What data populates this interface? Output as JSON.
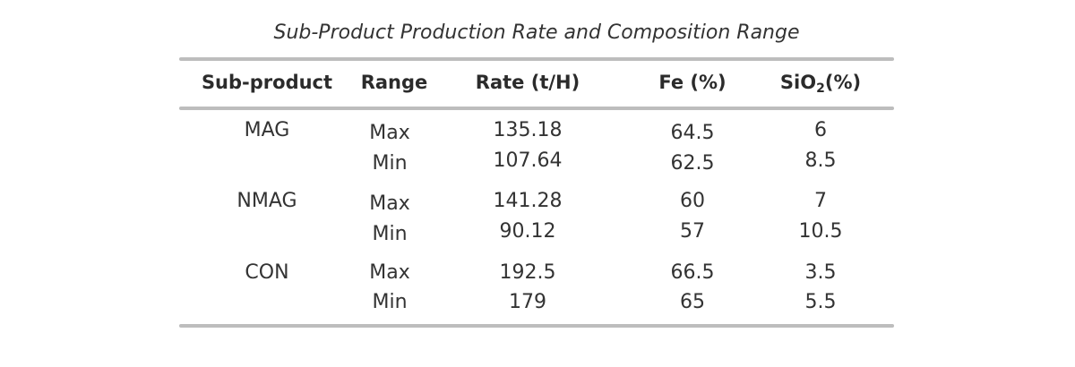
{
  "caption": "Sub-Product Production Rate and Composition Range",
  "headers": {
    "sub_product": "Sub-product",
    "range": "Range",
    "rate": "Rate (t/H)",
    "fe": "Fe (%)",
    "sio2_prefix": "SiO",
    "sio2_sub": "2",
    "sio2_suffix": "(%)"
  },
  "rows": [
    {
      "product": "MAG",
      "max": {
        "range": "Max",
        "rate": "135.18",
        "fe": "64.5",
        "sio2": "6"
      },
      "min": {
        "range": "Min",
        "rate": "107.64",
        "fe": "62.5",
        "sio2": "8.5"
      }
    },
    {
      "product": "NMAG",
      "max": {
        "range": "Max",
        "rate": "141.28",
        "fe": "60",
        "sio2": "7"
      },
      "min": {
        "range": "Min",
        "rate": "90.12",
        "fe": "57",
        "sio2": "10.5"
      }
    },
    {
      "product": "CON",
      "max": {
        "range": "Max",
        "rate": "192.5",
        "fe": "66.5",
        "sio2": "3.5"
      },
      "min": {
        "range": "Min",
        "rate": "179",
        "fe": "65",
        "sio2": "5.5"
      }
    }
  ]
}
